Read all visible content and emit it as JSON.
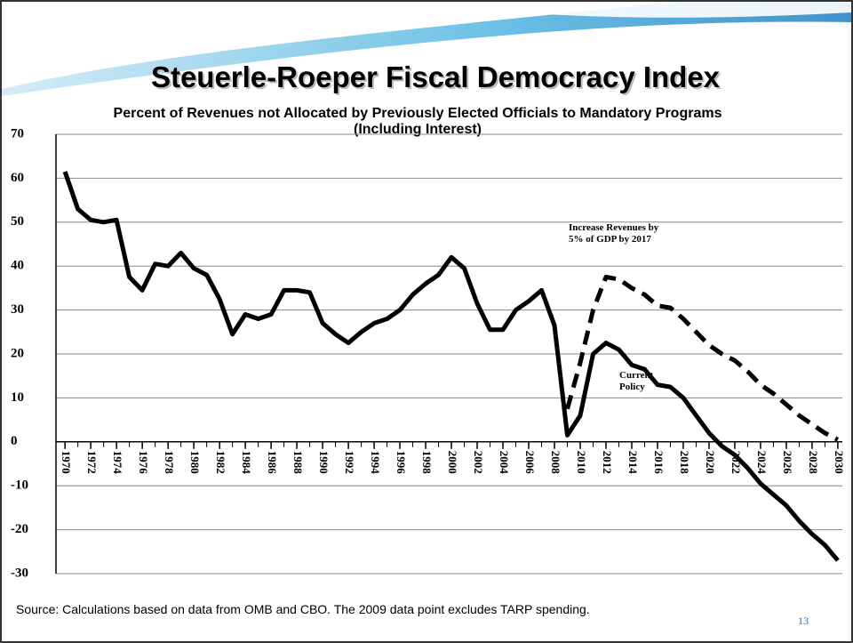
{
  "chart_data": {
    "type": "line",
    "title": "Steuerle-Roeper Fiscal Democracy Index",
    "subtitle": [
      "Percent of Revenues not Allocated by Previously Elected Officials to Mandatory Programs",
      "(Including Interest)"
    ],
    "x": [
      1970,
      1971,
      1972,
      1973,
      1974,
      1975,
      1976,
      1977,
      1978,
      1979,
      1980,
      1981,
      1982,
      1983,
      1984,
      1985,
      1986,
      1987,
      1988,
      1989,
      1990,
      1991,
      1992,
      1993,
      1994,
      1995,
      1996,
      1997,
      1998,
      1999,
      2000,
      2001,
      2002,
      2003,
      2004,
      2005,
      2006,
      2007,
      2008,
      2009,
      2010,
      2011,
      2012,
      2013,
      2014,
      2015,
      2016,
      2017,
      2018,
      2019,
      2020,
      2021,
      2022,
      2023,
      2024,
      2025,
      2026,
      2027,
      2028,
      2029,
      2030
    ],
    "series": [
      {
        "name": "Current Policy",
        "color": "#000000",
        "dash": false,
        "values": [
          61.5,
          53,
          50.5,
          50,
          50.5,
          37.5,
          34.5,
          40.5,
          40,
          43,
          39.5,
          38,
          32.5,
          24.5,
          29,
          28,
          29,
          34.5,
          34.5,
          34,
          27,
          24.5,
          22.5,
          25,
          27,
          28,
          30,
          33.5,
          36,
          38,
          42,
          39.5,
          31.5,
          25.5,
          25.5,
          30,
          32,
          34.5,
          26.5,
          1.5,
          6,
          20,
          22.5,
          21,
          17.5,
          16.5,
          13,
          12.5,
          10,
          6,
          2,
          -1,
          -3,
          -6,
          -9.5,
          -12,
          -14.5,
          -18,
          -21,
          -23.5,
          -27
        ]
      },
      {
        "name": "Increase Revenues by 5% of GDP by 2017",
        "color": "#000000",
        "dash": true,
        "values": [
          null,
          null,
          null,
          null,
          null,
          null,
          null,
          null,
          null,
          null,
          null,
          null,
          null,
          null,
          null,
          null,
          null,
          null,
          null,
          null,
          null,
          null,
          null,
          null,
          null,
          null,
          null,
          null,
          null,
          null,
          null,
          null,
          null,
          null,
          null,
          null,
          null,
          null,
          null,
          7.5,
          18,
          30,
          37.5,
          37,
          35,
          33.5,
          31,
          30.5,
          28,
          25,
          22,
          20,
          18.5,
          16,
          13,
          11,
          8.5,
          6,
          4,
          2,
          0.5
        ]
      }
    ],
    "xlim": [
      1969.3,
      2030.35
    ],
    "xticks": [
      1970,
      1972,
      1974,
      1976,
      1978,
      1980,
      1982,
      1984,
      1986,
      1988,
      1990,
      1992,
      1994,
      1996,
      1998,
      2000,
      2002,
      2004,
      2006,
      2008,
      2010,
      2012,
      2014,
      2016,
      2018,
      2020,
      2022,
      2024,
      2026,
      2028,
      2030
    ],
    "ylim": [
      -30,
      70
    ],
    "yticks": [
      -30,
      -20,
      -10,
      0,
      10,
      20,
      30,
      40,
      50,
      60,
      70
    ],
    "grid": true
  },
  "footer": {
    "source": "Source: Calculations based on data from OMB and CBO.  The 2009 data point excludes TARP spending.",
    "page": "13"
  }
}
